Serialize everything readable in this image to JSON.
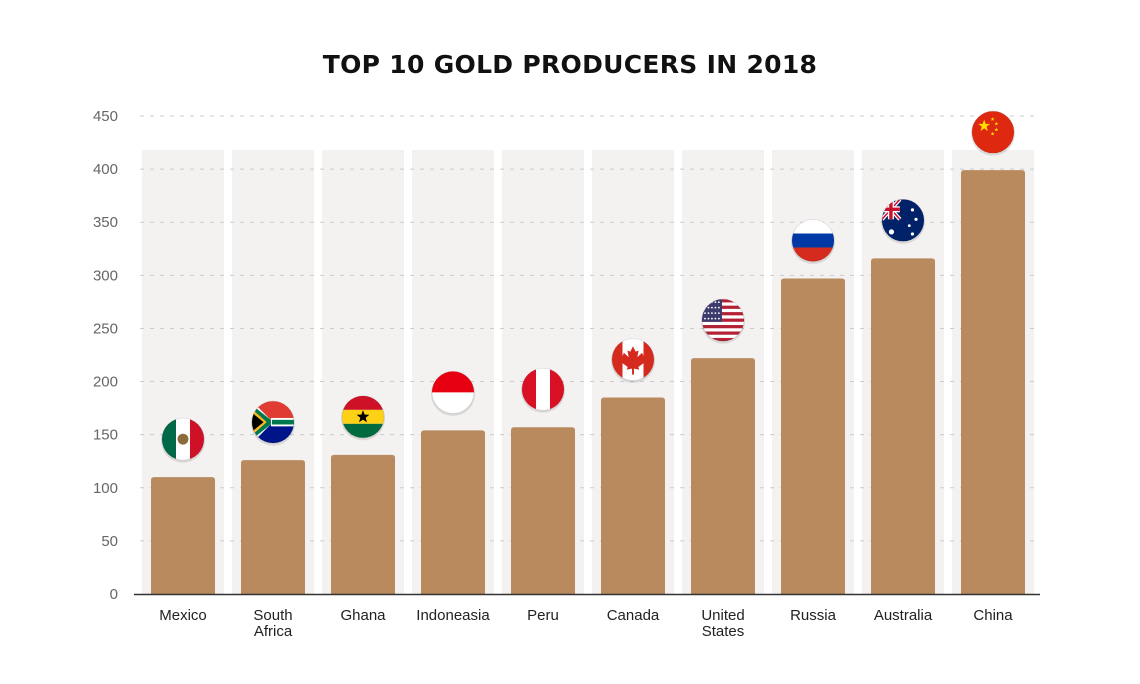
{
  "chart_data": {
    "type": "bar",
    "title": "TOP 10 GOLD PRODUCERS IN 2018",
    "xlabel": "",
    "ylabel": "",
    "ylim": [
      0,
      450
    ],
    "yticks": [
      0,
      50,
      100,
      150,
      200,
      250,
      300,
      350,
      400,
      450
    ],
    "grid": true,
    "categories": [
      [
        "Mexico"
      ],
      [
        "South",
        "Africa"
      ],
      [
        "Ghana"
      ],
      [
        "Indoneasia"
      ],
      [
        "Peru"
      ],
      [
        "Canada"
      ],
      [
        "United",
        "States"
      ],
      [
        "Russia"
      ],
      [
        "Australia"
      ],
      [
        "China"
      ]
    ],
    "values": [
      110,
      126,
      131,
      154,
      157,
      185,
      222,
      297,
      316,
      399
    ],
    "flag_icons": [
      "mexico-flag-icon",
      "south-africa-flag-icon",
      "ghana-flag-icon",
      "indonesia-flag-icon",
      "peru-flag-icon",
      "canada-flag-icon",
      "united-states-flag-icon",
      "russia-flag-icon",
      "australia-flag-icon",
      "china-flag-icon"
    ],
    "colors": {
      "bar": "#B88A5E",
      "column_bg": "#F4F1F1",
      "grid": "#CCCCCC",
      "axis": "#333333",
      "tick_text": "#666666",
      "label_text": "#222222"
    }
  }
}
